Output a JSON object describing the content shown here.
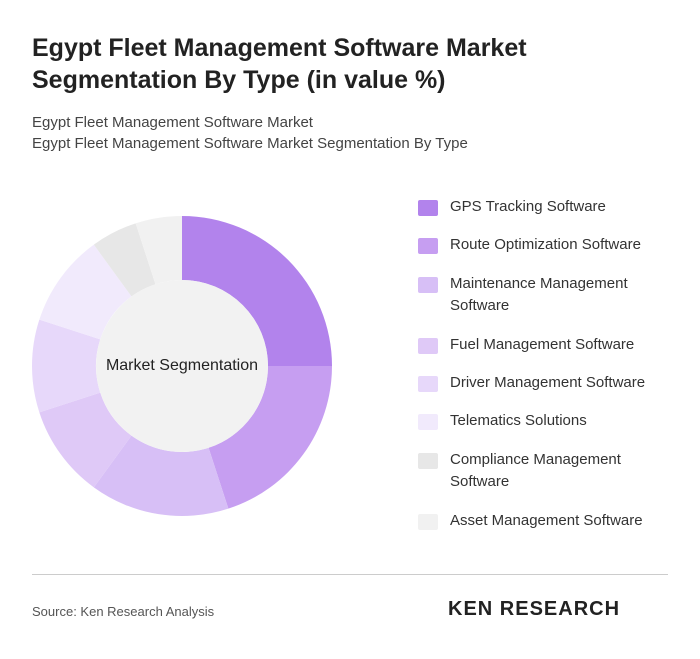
{
  "chart_data": {
    "type": "donut",
    "title": "Egypt Fleet Management Software Market Segmentation By Type (in value %)",
    "subtitle": [
      "Egypt Fleet Management Software Market",
      "Egypt Fleet Management Software Market Segmentation By Type"
    ],
    "center_label": "Market Segmentation",
    "categories": [
      "GPS Tracking Software",
      "Route Optimization Software",
      "Maintenance Management Software",
      "Fuel Management Software",
      "Driver Management Software",
      "Telematics Solutions",
      "Compliance Management Software",
      "Asset Management Software"
    ],
    "values": [
      25,
      20,
      15,
      10,
      10,
      10,
      5,
      5
    ],
    "colors": [
      "#b283ec",
      "#c69ef1",
      "#d7bff6",
      "#dfc9f7",
      "#e7d8fa",
      "#f1eafc",
      "#e7e7e7",
      "#f1f1f1"
    ],
    "source": "Source: Ken Research Analysis",
    "logo": "KEN RESEARCH"
  }
}
